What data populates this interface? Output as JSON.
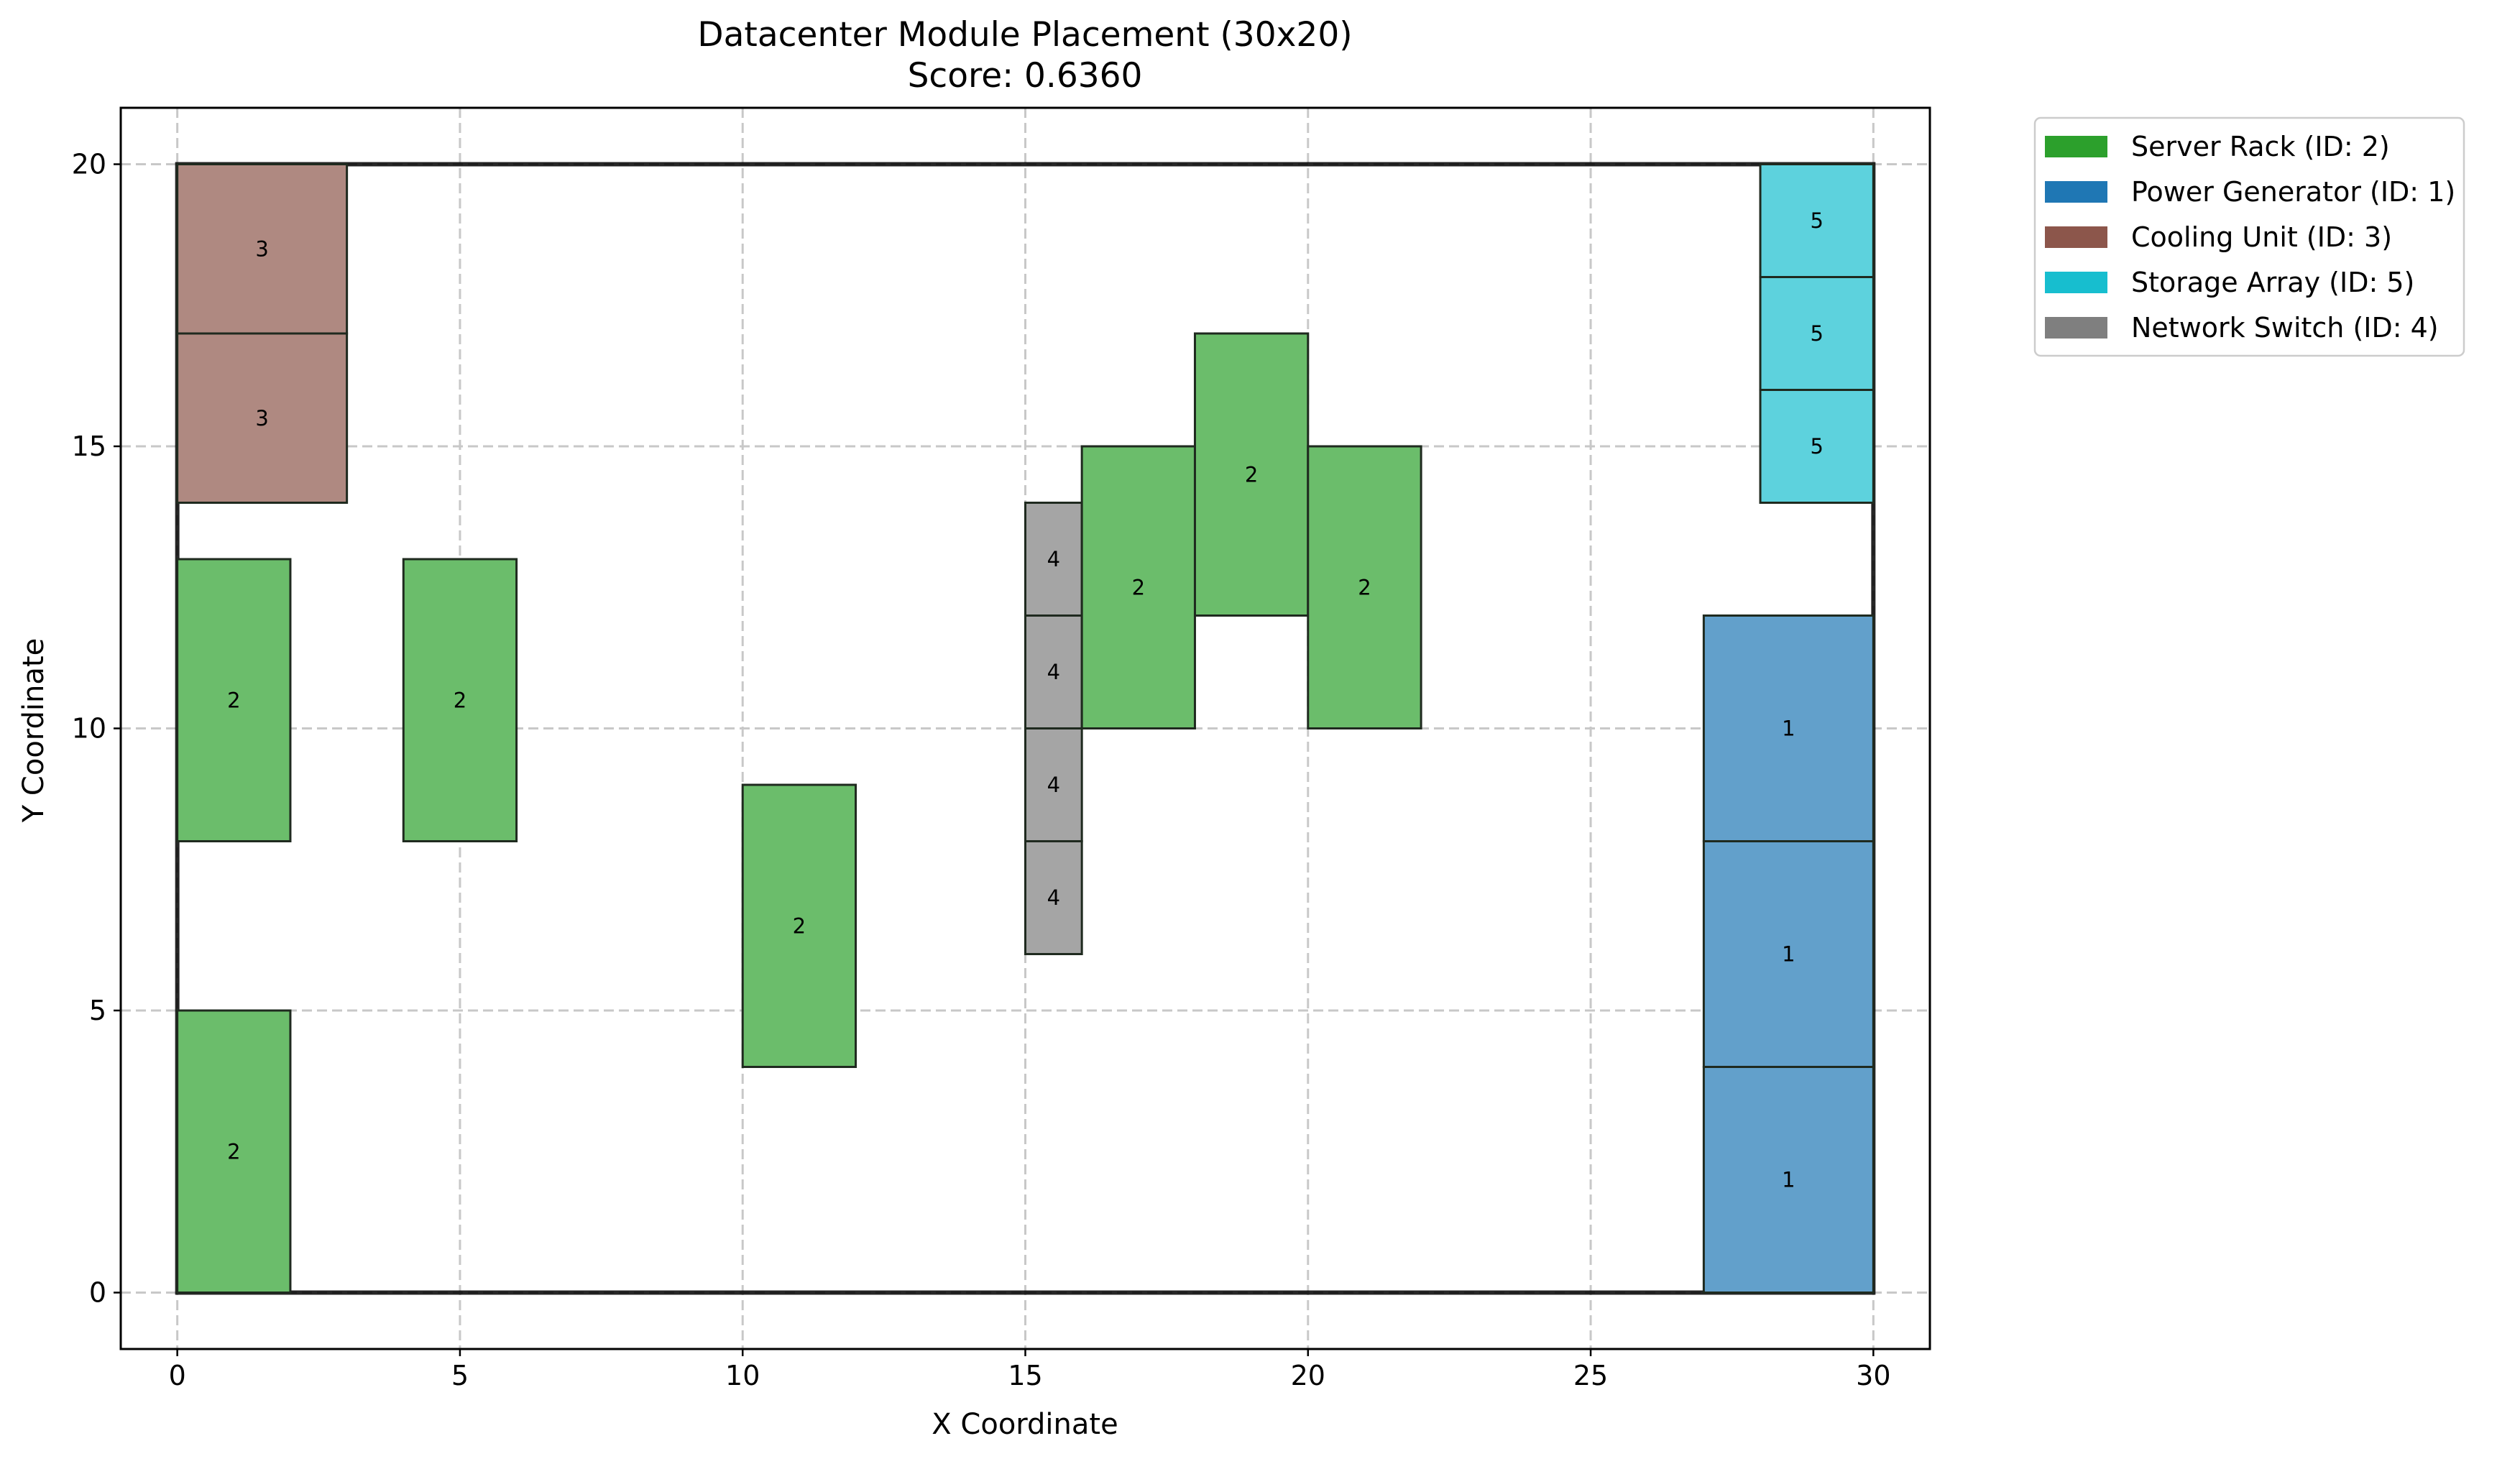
{
  "chart_data": {
    "type": "placement",
    "title": "Datacenter Module Placement (30x20)",
    "subtitle": "Score: 0.6360",
    "xlabel": "X Coordinate",
    "ylabel": "Y Coordinate",
    "xlim": [
      -1,
      31
    ],
    "ylim": [
      -1,
      21
    ],
    "x_ticks": [
      0,
      5,
      10,
      15,
      20,
      25,
      30
    ],
    "y_ticks": [
      0,
      5,
      10,
      15,
      20
    ],
    "grid": true,
    "legend_position": "outside upper right",
    "boundary": {
      "x": 0,
      "y": 0,
      "w": 30,
      "h": 20
    },
    "types": [
      {
        "id": 2,
        "name": "Server Rack (ID: 2)",
        "color": "#2ca02c"
      },
      {
        "id": 1,
        "name": "Power Generator (ID: 1)",
        "color": "#1f77b4"
      },
      {
        "id": 3,
        "name": "Cooling Unit (ID: 3)",
        "color": "#8c564b"
      },
      {
        "id": 5,
        "name": "Storage Array (ID: 5)",
        "color": "#17becf"
      },
      {
        "id": 4,
        "name": "Network Switch (ID: 4)",
        "color": "#7f7f7f"
      }
    ],
    "modules": [
      {
        "type": 3,
        "x": 0,
        "y": 17,
        "w": 3,
        "h": 3,
        "label": "3"
      },
      {
        "type": 3,
        "x": 0,
        "y": 14,
        "w": 3,
        "h": 3,
        "label": "3"
      },
      {
        "type": 2,
        "x": 0,
        "y": 8,
        "w": 2,
        "h": 5,
        "label": "2"
      },
      {
        "type": 2,
        "x": 4,
        "y": 8,
        "w": 2,
        "h": 5,
        "label": "2"
      },
      {
        "type": 2,
        "x": 0,
        "y": 0,
        "w": 2,
        "h": 5,
        "label": "2"
      },
      {
        "type": 2,
        "x": 10,
        "y": 4,
        "w": 2,
        "h": 5,
        "label": "2"
      },
      {
        "type": 4,
        "x": 15,
        "y": 12,
        "w": 1,
        "h": 2,
        "label": "4"
      },
      {
        "type": 4,
        "x": 15,
        "y": 10,
        "w": 1,
        "h": 2,
        "label": "4"
      },
      {
        "type": 4,
        "x": 15,
        "y": 8,
        "w": 1,
        "h": 2,
        "label": "4"
      },
      {
        "type": 4,
        "x": 15,
        "y": 6,
        "w": 1,
        "h": 2,
        "label": "4"
      },
      {
        "type": 2,
        "x": 16,
        "y": 10,
        "w": 2,
        "h": 5,
        "label": "2"
      },
      {
        "type": 2,
        "x": 18,
        "y": 12,
        "w": 2,
        "h": 5,
        "label": "2"
      },
      {
        "type": 2,
        "x": 20,
        "y": 10,
        "w": 2,
        "h": 5,
        "label": "2"
      },
      {
        "type": 5,
        "x": 28,
        "y": 18,
        "w": 2,
        "h": 2,
        "label": "5"
      },
      {
        "type": 5,
        "x": 28,
        "y": 16,
        "w": 2,
        "h": 2,
        "label": "5"
      },
      {
        "type": 5,
        "x": 28,
        "y": 14,
        "w": 2,
        "h": 2,
        "label": "5"
      },
      {
        "type": 1,
        "x": 27,
        "y": 8,
        "w": 3,
        "h": 4,
        "label": "1"
      },
      {
        "type": 1,
        "x": 27,
        "y": 4,
        "w": 3,
        "h": 4,
        "label": "1"
      },
      {
        "type": 1,
        "x": 27,
        "y": 0,
        "w": 3,
        "h": 4,
        "label": "1"
      }
    ]
  }
}
